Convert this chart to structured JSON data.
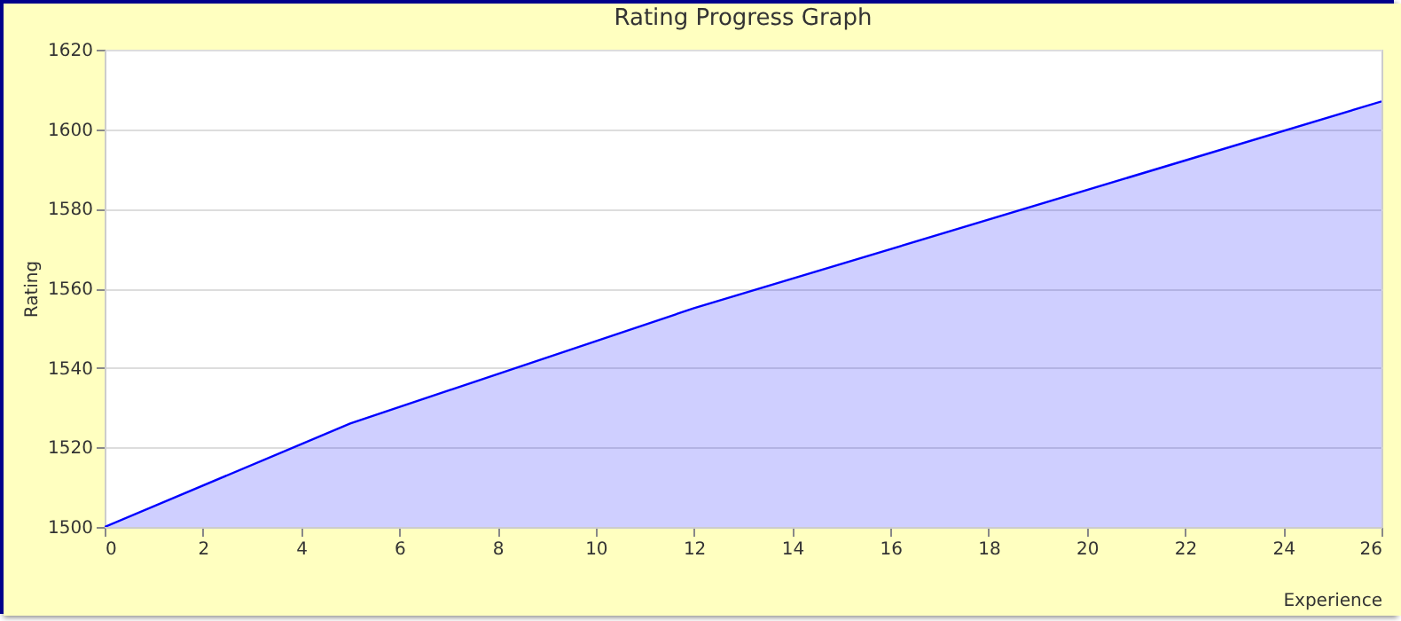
{
  "chart_data": {
    "type": "area",
    "title": "Rating Progress Graph",
    "xlabel": "Experience",
    "ylabel": "Rating",
    "x": [
      0,
      5,
      12,
      26
    ],
    "series": [
      {
        "color": "#0000ff",
        "values": [
          1500,
          1526,
          1555,
          1607
        ]
      }
    ],
    "xlim": [
      0,
      26
    ],
    "xticks": [
      0,
      2,
      4,
      6,
      8,
      10,
      12,
      14,
      16,
      18,
      20,
      22,
      24,
      26
    ],
    "ylim": [
      1500,
      1620
    ],
    "yticks": [
      1500,
      1520,
      1540,
      1560,
      1580,
      1600,
      1620
    ],
    "grid": "y",
    "legend": false,
    "marker": "none"
  }
}
